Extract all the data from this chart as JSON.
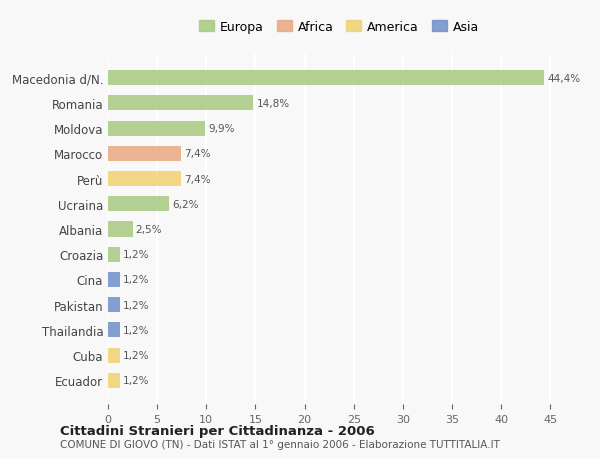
{
  "categories": [
    "Macedonia d/N.",
    "Romania",
    "Moldova",
    "Marocco",
    "Perù",
    "Ucraina",
    "Albania",
    "Croazia",
    "Cina",
    "Pakistan",
    "Thailandia",
    "Cuba",
    "Ecuador"
  ],
  "values": [
    44.4,
    14.8,
    9.9,
    7.4,
    7.4,
    6.2,
    2.5,
    1.2,
    1.2,
    1.2,
    1.2,
    1.2,
    1.2
  ],
  "labels": [
    "44,4%",
    "14,8%",
    "9,9%",
    "7,4%",
    "7,4%",
    "6,2%",
    "2,5%",
    "1,2%",
    "1,2%",
    "1,2%",
    "1,2%",
    "1,2%",
    "1,2%"
  ],
  "colors": [
    "#a8c880",
    "#a8c880",
    "#a8c880",
    "#e8a882",
    "#f0d070",
    "#a8c880",
    "#a8c880",
    "#a8c880",
    "#7090c8",
    "#7090c8",
    "#7090c8",
    "#f0d070",
    "#f0d070"
  ],
  "legend": {
    "Europa": "#a8c880",
    "Africa": "#e8a882",
    "America": "#f0d070",
    "Asia": "#7090c8"
  },
  "xlim": [
    0,
    47
  ],
  "xticks": [
    0,
    5,
    10,
    15,
    20,
    25,
    30,
    35,
    40,
    45
  ],
  "title": "Cittadini Stranieri per Cittadinanza - 2006",
  "subtitle": "COMUNE DI GIOVO (TN) - Dati ISTAT al 1° gennaio 2006 - Elaborazione TUTTITALIA.IT",
  "background_color": "#f8f8f8",
  "grid_color": "#ffffff",
  "bar_height": 0.6
}
